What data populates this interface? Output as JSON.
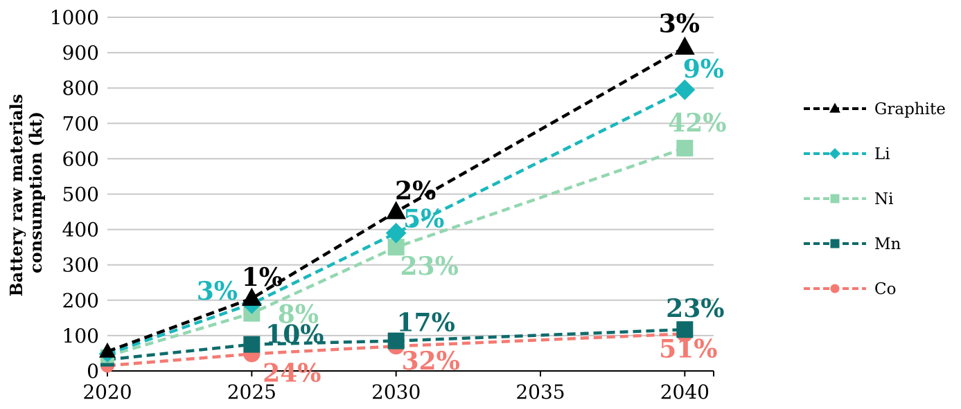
{
  "chart_data": {
    "type": "line",
    "title": "",
    "xlabel": "",
    "ylabel": "Battery raw materials consumption (kt)",
    "x": [
      2020,
      2025,
      2030,
      2040
    ],
    "xticks": [
      "2020",
      "2025",
      "2030",
      "2035",
      "2040"
    ],
    "yticks": [
      "0",
      "100",
      "200",
      "300",
      "400",
      "500",
      "600",
      "700",
      "800",
      "900",
      "1000"
    ],
    "xlim": [
      2020,
      2041
    ],
    "ylim": [
      0,
      1000
    ],
    "grid": "horizontal",
    "legend_position": "right",
    "series": [
      {
        "name": "Graphite",
        "color": "#000000",
        "marker": "triangle",
        "values": [
          55,
          205,
          450,
          915
        ],
        "labels": [
          "",
          "1%",
          "2%",
          "3%"
        ]
      },
      {
        "name": "Li",
        "color": "#1ab7bd",
        "marker": "diamond",
        "values": [
          48,
          190,
          390,
          795
        ],
        "labels": [
          "",
          "3%",
          "5%",
          "9%"
        ]
      },
      {
        "name": "Ni",
        "color": "#93d7b0",
        "marker": "square",
        "values": [
          42,
          163,
          350,
          630
        ],
        "labels": [
          "",
          "8%",
          "23%",
          "42%"
        ]
      },
      {
        "name": "Mn",
        "color": "#0f6b6b",
        "marker": "square",
        "values": [
          32,
          75,
          85,
          117
        ],
        "labels": [
          "",
          "10%",
          "17%",
          "23%"
        ]
      },
      {
        "name": "Co",
        "color": "#f47a72",
        "marker": "circle",
        "values": [
          15,
          48,
          70,
          105
        ],
        "labels": [
          "",
          "24%",
          "32%",
          "51%"
        ]
      }
    ]
  }
}
